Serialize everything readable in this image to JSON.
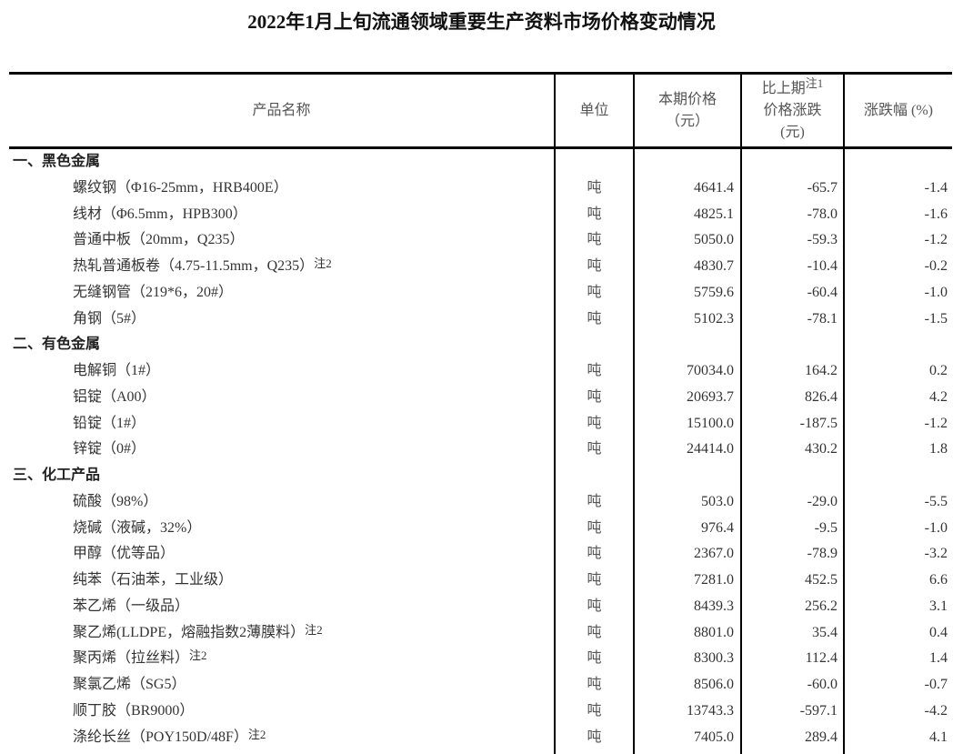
{
  "title": "2022年1月上旬流通领域重要生产资料市场价格变动情况",
  "headers": {
    "name": "产品名称",
    "unit": "单位",
    "price_line1": "本期价格",
    "price_line2": "（元）",
    "change_line1": "比上期",
    "change_note": "注1",
    "change_line2": "价格涨跌",
    "change_line3": "(元)",
    "pct": "涨跌幅 (%)"
  },
  "rows": [
    {
      "type": "section",
      "name": "一、黑色金属"
    },
    {
      "type": "item",
      "name": "螺纹钢（Φ16-25mm，HRB400E）",
      "unit": "吨",
      "price": "4641.4",
      "change": "-65.7",
      "pct": "-1.4"
    },
    {
      "type": "item",
      "name": "线材（Φ6.5mm，HPB300）",
      "unit": "吨",
      "price": "4825.1",
      "change": "-78.0",
      "pct": "-1.6"
    },
    {
      "type": "item",
      "name": "普通中板（20mm，Q235）",
      "unit": "吨",
      "price": "5050.0",
      "change": "-59.3",
      "pct": "-1.2"
    },
    {
      "type": "item",
      "name": "热轧普通板卷（4.75-11.5mm，Q235）",
      "note": "注2",
      "unit": "吨",
      "price": "4830.7",
      "change": "-10.4",
      "pct": "-0.2"
    },
    {
      "type": "item",
      "name": "无缝钢管（219*6，20#）",
      "unit": "吨",
      "price": "5759.6",
      "change": "-60.4",
      "pct": "-1.0"
    },
    {
      "type": "item",
      "name": "角钢（5#）",
      "unit": "吨",
      "price": "5102.3",
      "change": "-78.1",
      "pct": "-1.5"
    },
    {
      "type": "section",
      "name": "二、有色金属"
    },
    {
      "type": "item",
      "name": "电解铜（1#）",
      "unit": "吨",
      "price": "70034.0",
      "change": "164.2",
      "pct": "0.2"
    },
    {
      "type": "item",
      "name": "铝锭（A00）",
      "unit": "吨",
      "price": "20693.7",
      "change": "826.4",
      "pct": "4.2"
    },
    {
      "type": "item",
      "name": "铅锭（1#）",
      "unit": "吨",
      "price": "15100.0",
      "change": "-187.5",
      "pct": "-1.2"
    },
    {
      "type": "item",
      "name": "锌锭（0#）",
      "unit": "吨",
      "price": "24414.0",
      "change": "430.2",
      "pct": "1.8"
    },
    {
      "type": "section",
      "name": "三、化工产品"
    },
    {
      "type": "item",
      "name": "硫酸（98%）",
      "unit": "吨",
      "price": "503.0",
      "change": "-29.0",
      "pct": "-5.5"
    },
    {
      "type": "item",
      "name": "烧碱（液碱，32%）",
      "unit": "吨",
      "price": "976.4",
      "change": "-9.5",
      "pct": "-1.0"
    },
    {
      "type": "item",
      "name": "甲醇（优等品）",
      "unit": "吨",
      "price": "2367.0",
      "change": "-78.9",
      "pct": "-3.2"
    },
    {
      "type": "item",
      "name": "纯苯（石油苯，工业级）",
      "unit": "吨",
      "price": "7281.0",
      "change": "452.5",
      "pct": "6.6"
    },
    {
      "type": "item",
      "name": "苯乙烯（一级品）",
      "unit": "吨",
      "price": "8439.3",
      "change": "256.2",
      "pct": "3.1"
    },
    {
      "type": "item",
      "name": "聚乙烯(LLDPE，熔融指数2薄膜料）",
      "note": "注2",
      "unit": "吨",
      "price": "8801.0",
      "change": "35.4",
      "pct": "0.4"
    },
    {
      "type": "item",
      "name": "聚丙烯（拉丝料）",
      "note": "注2",
      "unit": "吨",
      "price": "8300.3",
      "change": "112.4",
      "pct": "1.4"
    },
    {
      "type": "item",
      "name": "聚氯乙烯（SG5）",
      "unit": "吨",
      "price": "8506.0",
      "change": "-60.0",
      "pct": "-0.7"
    },
    {
      "type": "item",
      "name": "顺丁胶（BR9000）",
      "unit": "吨",
      "price": "13743.3",
      "change": "-597.1",
      "pct": "-4.2"
    },
    {
      "type": "item",
      "name": "涤纶长丝（POY150D/48F）",
      "note": "注2",
      "unit": "吨",
      "price": "7405.0",
      "change": "289.4",
      "pct": "4.1"
    }
  ]
}
